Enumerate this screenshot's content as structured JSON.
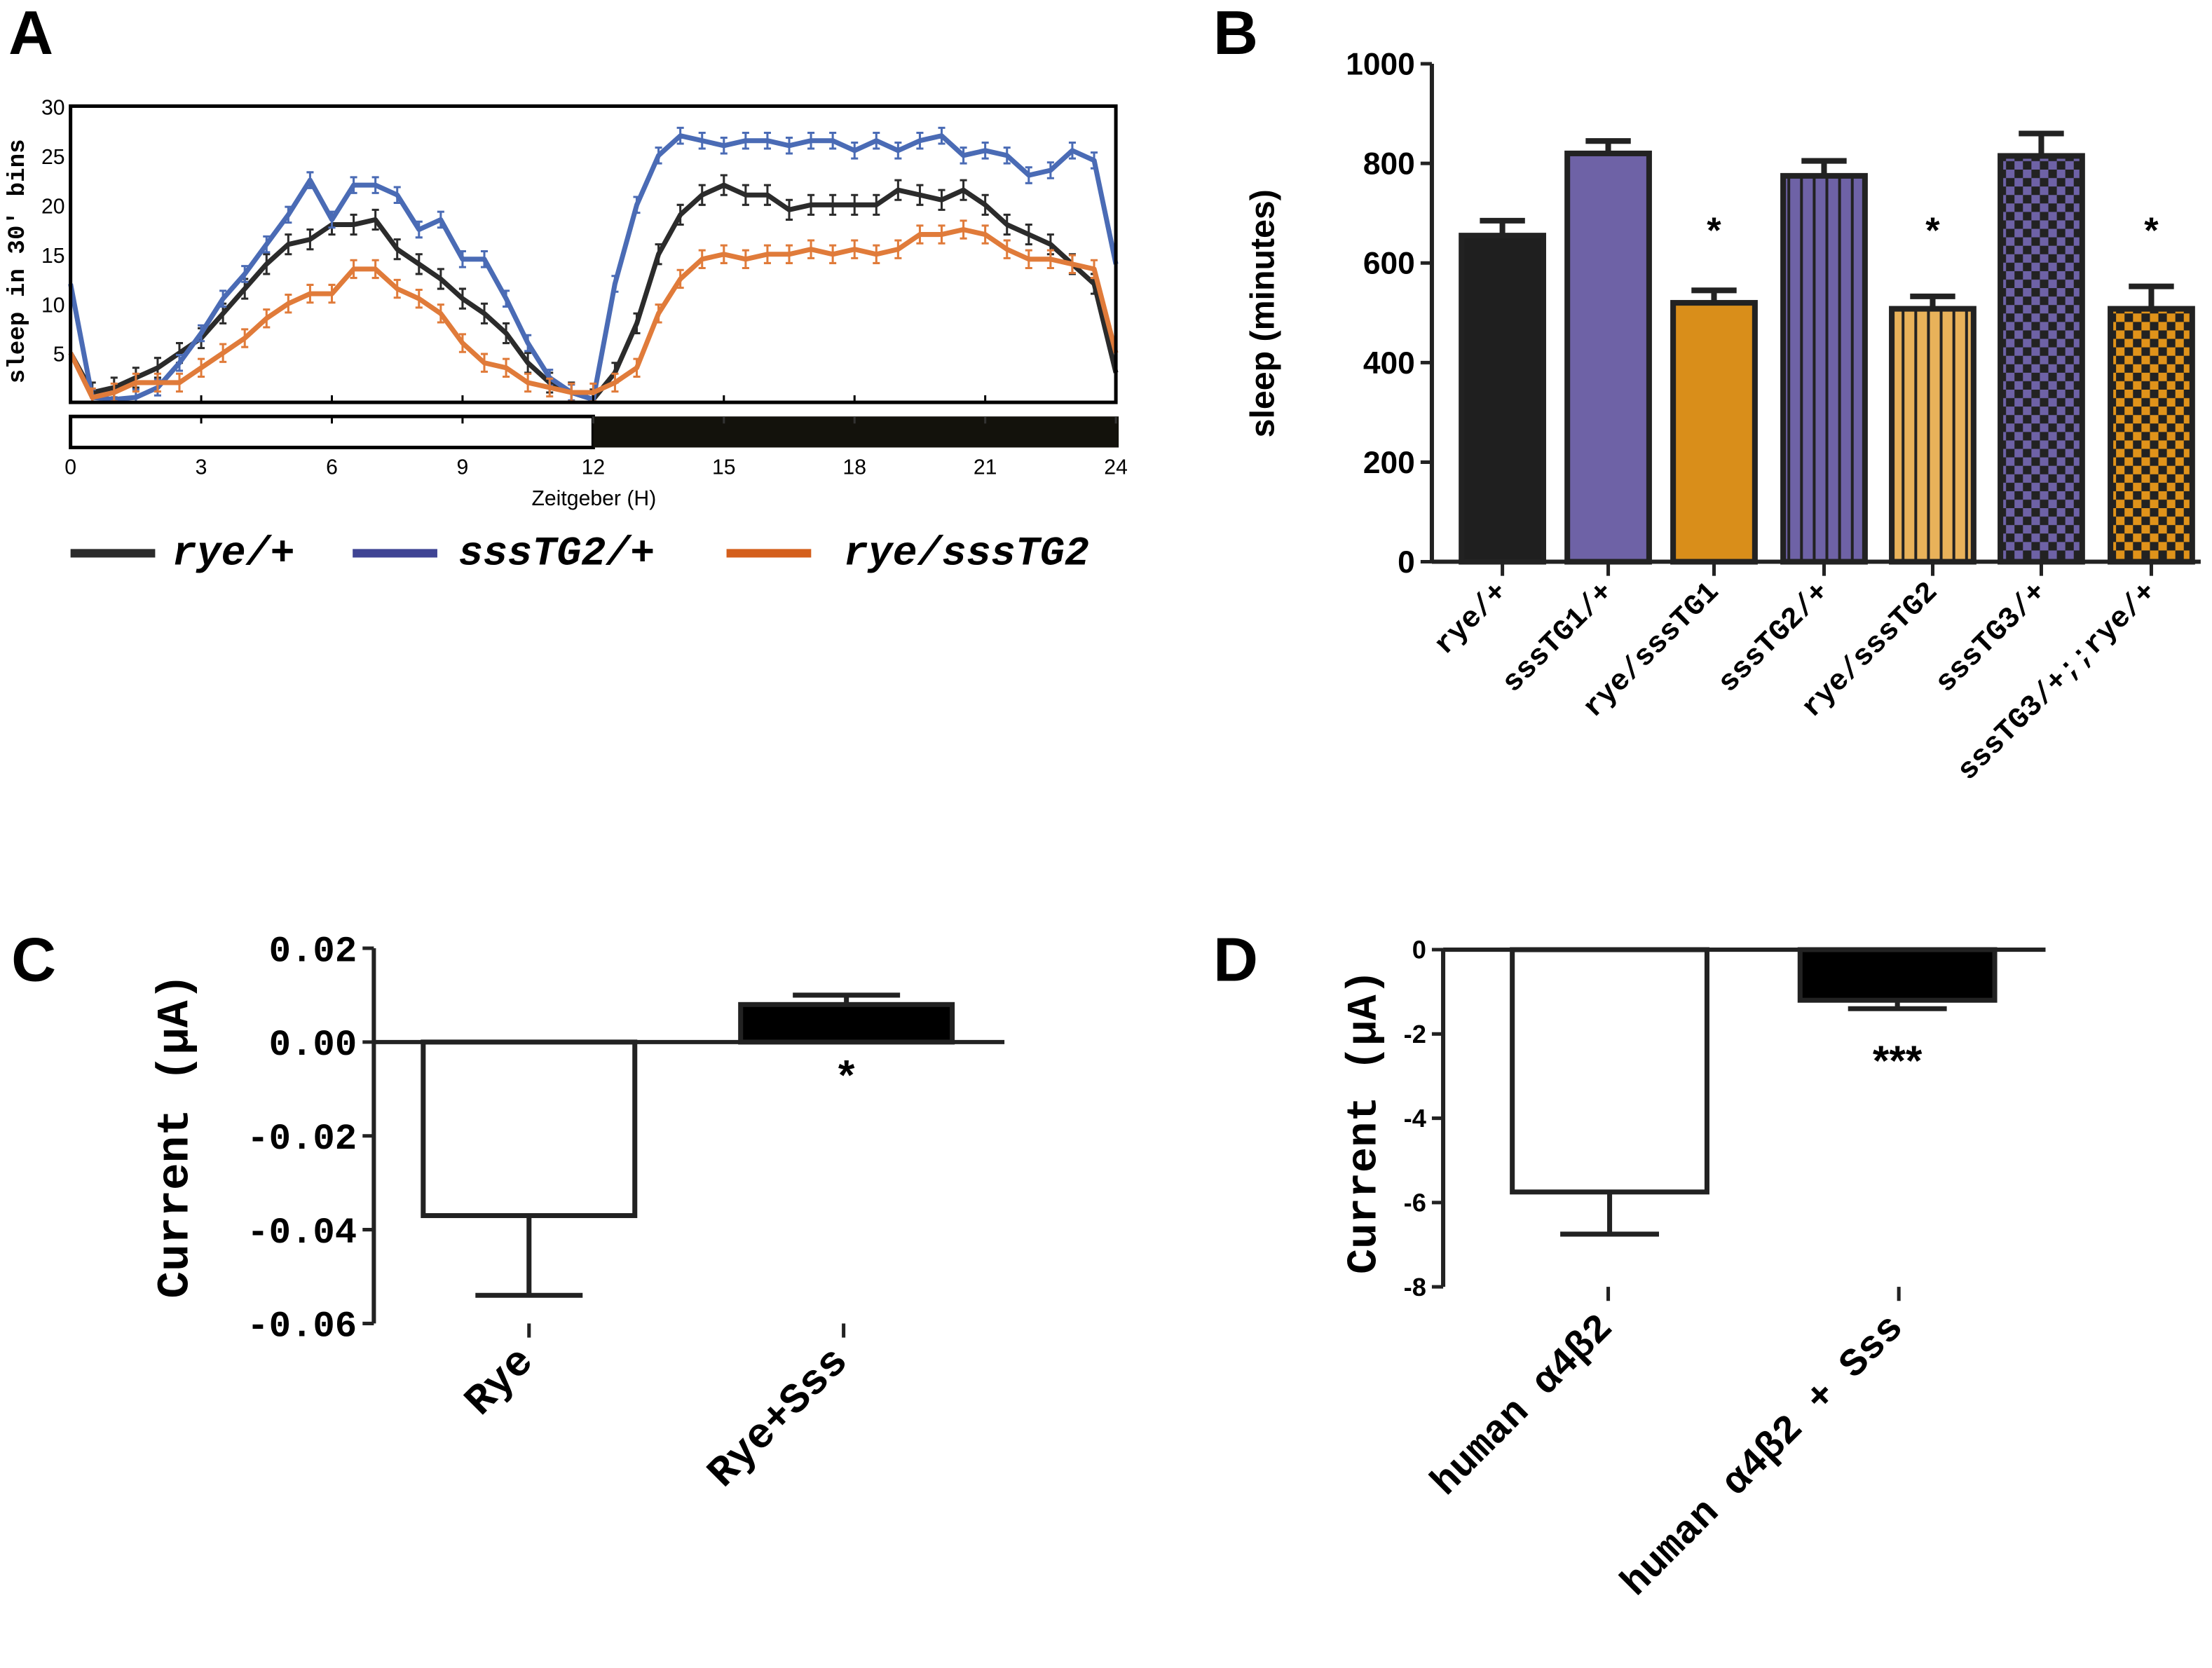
{
  "panels": {
    "a": "A",
    "b": "B",
    "c": "C",
    "d": "D"
  },
  "chart_data": [
    {
      "type": "line",
      "panel": "A",
      "ylabel": "sleep in 30′ bins",
      "xlabel": "Zeitgeber (H)",
      "ylim": [
        0,
        30
      ],
      "xlim": [
        0,
        24
      ],
      "yticks": [
        "5",
        "10",
        "15",
        "20",
        "25",
        "30"
      ],
      "xticks": [
        "0",
        "3",
        "6",
        "9",
        "12",
        "15",
        "18",
        "21",
        "24"
      ],
      "light_dark_bar": {
        "light": [
          0,
          12
        ],
        "dark": [
          12,
          24
        ]
      },
      "x": [
        0,
        0.5,
        1,
        1.5,
        2,
        2.5,
        3,
        3.5,
        4,
        4.5,
        5,
        5.5,
        6,
        6.5,
        7,
        7.5,
        8,
        8.5,
        9,
        9.5,
        10,
        10.5,
        11,
        11.5,
        12,
        12.5,
        13,
        13.5,
        14,
        14.5,
        15,
        15.5,
        16,
        16.5,
        17,
        17.5,
        18,
        18.5,
        19,
        19.5,
        20,
        20.5,
        21,
        21.5,
        22,
        22.5,
        23,
        23.5,
        24
      ],
      "series": [
        {
          "name": "rye/+",
          "color": "#2b2b2b",
          "sem": 1.0,
          "values": [
            5,
            1,
            1.5,
            2.5,
            3.5,
            5,
            6.5,
            9,
            11.5,
            14,
            16,
            16.5,
            18,
            18,
            18.5,
            15.5,
            14,
            12.5,
            10.5,
            9,
            7,
            4,
            2,
            1,
            0.3,
            3,
            8,
            15,
            19,
            21,
            22,
            21,
            21,
            19.5,
            20,
            20,
            20,
            20,
            21.5,
            21,
            20.5,
            21.5,
            20,
            18,
            17,
            16,
            14,
            12,
            3
          ]
        },
        {
          "name": "sssTG2/+",
          "color": "#4a6bb5",
          "sem": 0.8,
          "values": [
            12,
            0.5,
            0.3,
            0.5,
            1.5,
            4,
            7,
            10.5,
            13,
            16,
            19,
            22.5,
            18.5,
            22,
            22,
            21,
            17.5,
            18.5,
            14.5,
            14.5,
            10.5,
            6,
            2.5,
            1,
            0.3,
            12,
            20,
            25,
            27,
            26.5,
            26,
            26.5,
            26.5,
            26,
            26.5,
            26.5,
            25.5,
            26.5,
            25.5,
            26.5,
            27,
            25,
            25.5,
            25,
            23,
            23.5,
            25.5,
            24.5,
            14
          ]
        },
        {
          "name": "rye/sssTG2",
          "color": "#e07b3a",
          "sem": 0.9,
          "values": [
            5,
            0.5,
            1,
            2,
            2,
            2,
            3.5,
            5,
            6.5,
            8.5,
            10,
            11,
            11,
            13.5,
            13.5,
            11.5,
            10.5,
            9,
            6,
            4,
            3.5,
            2,
            1.5,
            1,
            1,
            2,
            3.5,
            9,
            12.5,
            14.5,
            15,
            14.5,
            15,
            15,
            15.5,
            15,
            15.5,
            15,
            15.5,
            17,
            17,
            17.5,
            17,
            15.5,
            14.5,
            14.5,
            14,
            13.5,
            5
          ]
        }
      ],
      "legend": {
        "position": "bottom",
        "items": [
          "rye/+",
          "sssTG2/+",
          "rye/sssTG2"
        ],
        "colors": [
          "#2b2b2b",
          "#3f4494",
          "#d45f1c"
        ]
      }
    },
    {
      "type": "bar",
      "panel": "B",
      "ylabel": "sleep (minutes)",
      "ylim": [
        0,
        1000
      ],
      "yticks": [
        "0",
        "200",
        "400",
        "600",
        "800",
        "1000"
      ],
      "categories": [
        "rye/+",
        "sssTG1/+",
        "rye/sssTG1",
        "sssTG2/+",
        "rye/sssTG2",
        "sssTG3/+",
        "sssTG3/+;;rye/+"
      ],
      "values": [
        655,
        820,
        520,
        775,
        508,
        815,
        508
      ],
      "errors": [
        30,
        25,
        25,
        30,
        25,
        45,
        45
      ],
      "fills": [
        "#1f1f1f",
        "#6e62a6",
        "#d98e1a",
        "#6e62a6",
        "#e8b25a",
        "#6e62a6",
        "#e0931a"
      ],
      "patterns": [
        "solid",
        "solid",
        "solid",
        "vertical-stripes",
        "vertical-stripes",
        "checker",
        "checker"
      ],
      "significance": [
        "",
        "",
        "*",
        "",
        "*",
        "",
        "*"
      ]
    },
    {
      "type": "bar",
      "panel": "C",
      "ylabel": "Current (μA)",
      "ylim": [
        -0.06,
        0.02
      ],
      "yticks": [
        "0.02",
        "0.00",
        "-0.02",
        "-0.04",
        "-0.06"
      ],
      "categories": [
        "Rye",
        "Rye+Sss"
      ],
      "values": [
        -0.037,
        0.008
      ],
      "errors": [
        0.017,
        0.002
      ],
      "fills": [
        "#ffffff",
        "#000000"
      ],
      "significance": [
        "",
        "*"
      ]
    },
    {
      "type": "bar",
      "panel": "D",
      "ylabel": "Current (μA)",
      "ylim": [
        -8,
        0
      ],
      "yticks": [
        "0",
        "-2",
        "-4",
        "-6",
        "-8"
      ],
      "categories": [
        "human α4β2",
        "human α4β2 + Sss"
      ],
      "values": [
        -5.75,
        -1.2
      ],
      "errors": [
        1.0,
        0.2
      ],
      "fills": [
        "#ffffff",
        "#000000"
      ],
      "significance": [
        "",
        "***"
      ]
    }
  ]
}
